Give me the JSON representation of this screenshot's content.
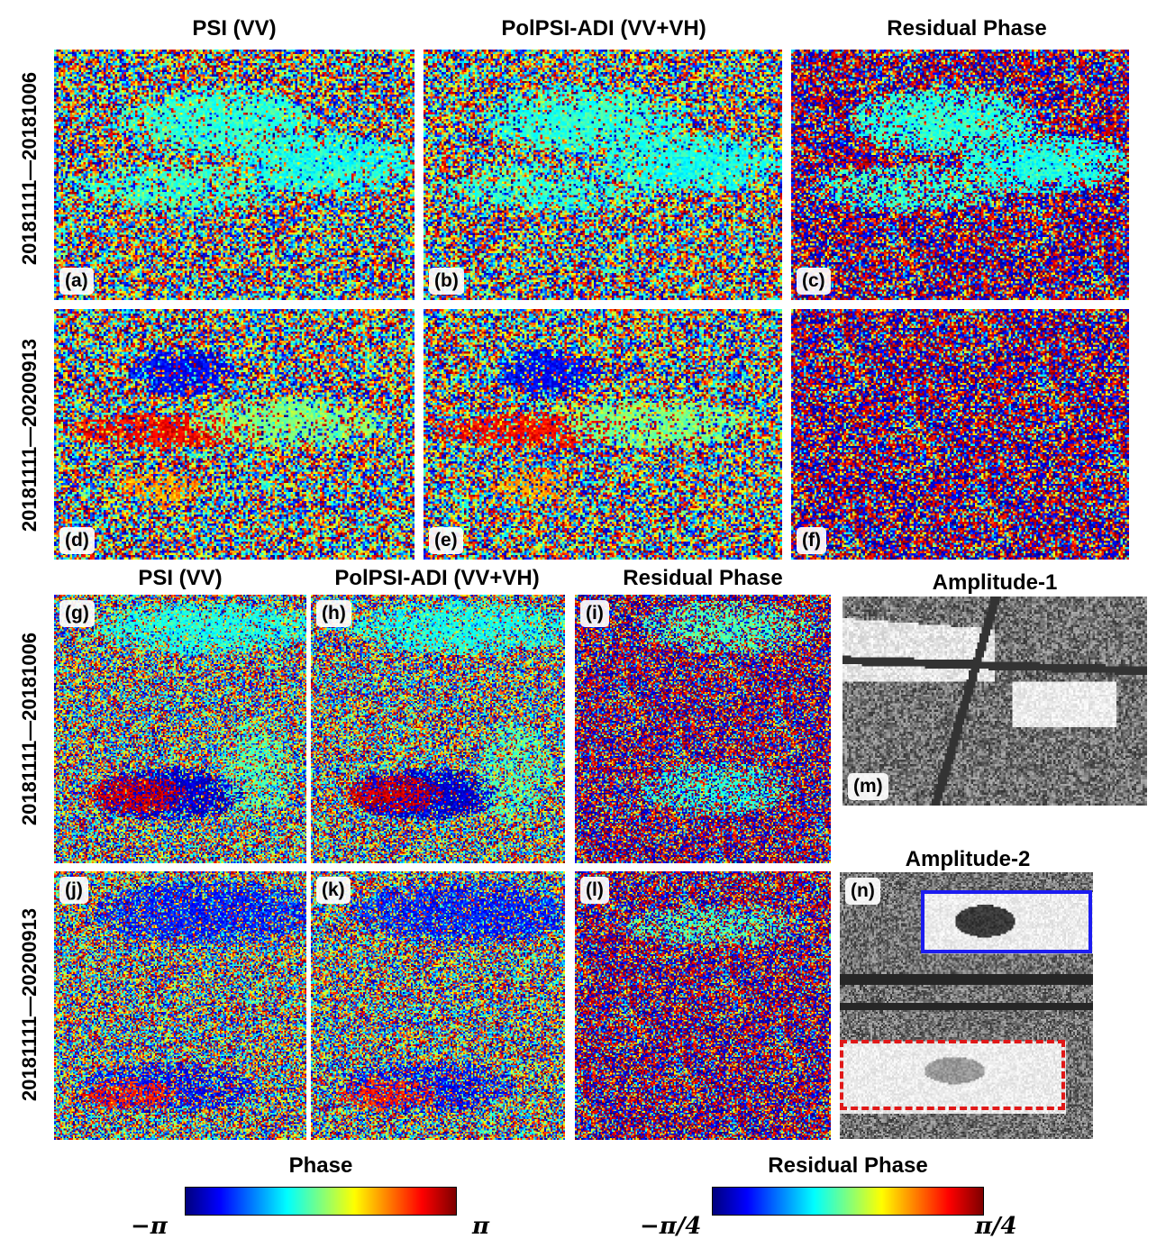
{
  "top": {
    "col_titles": [
      "PSI (VV)",
      "PolPSI-ADI (VV+VH)",
      "Residual Phase"
    ],
    "row_labels": [
      "20181111—20181006",
      "20181111—20200913"
    ],
    "panel_labels": [
      "(a)",
      "(b)",
      "(c)",
      "(d)",
      "(e)",
      "(f)"
    ]
  },
  "bottom": {
    "col_titles": [
      "PSI (VV)",
      "PolPSI-ADI (VV+VH)",
      "Residual Phase"
    ],
    "row_labels": [
      "20181111—20181006",
      "20181111—20200913"
    ],
    "panel_labels": [
      "(g)",
      "(h)",
      "(i)",
      "(j)",
      "(k)",
      "(l)"
    ]
  },
  "amplitude": {
    "titles": [
      "Amplitude-1",
      "Amplitude-2"
    ],
    "panel_labels": [
      "(m)",
      "(n)"
    ],
    "box_colors": {
      "solid": "#1c1cf0",
      "dashed": "#e01818"
    }
  },
  "colorbars": {
    "phase": {
      "label": "Phase",
      "min": "−π",
      "max": "π"
    },
    "residual": {
      "label": "Residual Phase",
      "min": "−π/4",
      "max": "π/4"
    },
    "colormap": "jet"
  }
}
